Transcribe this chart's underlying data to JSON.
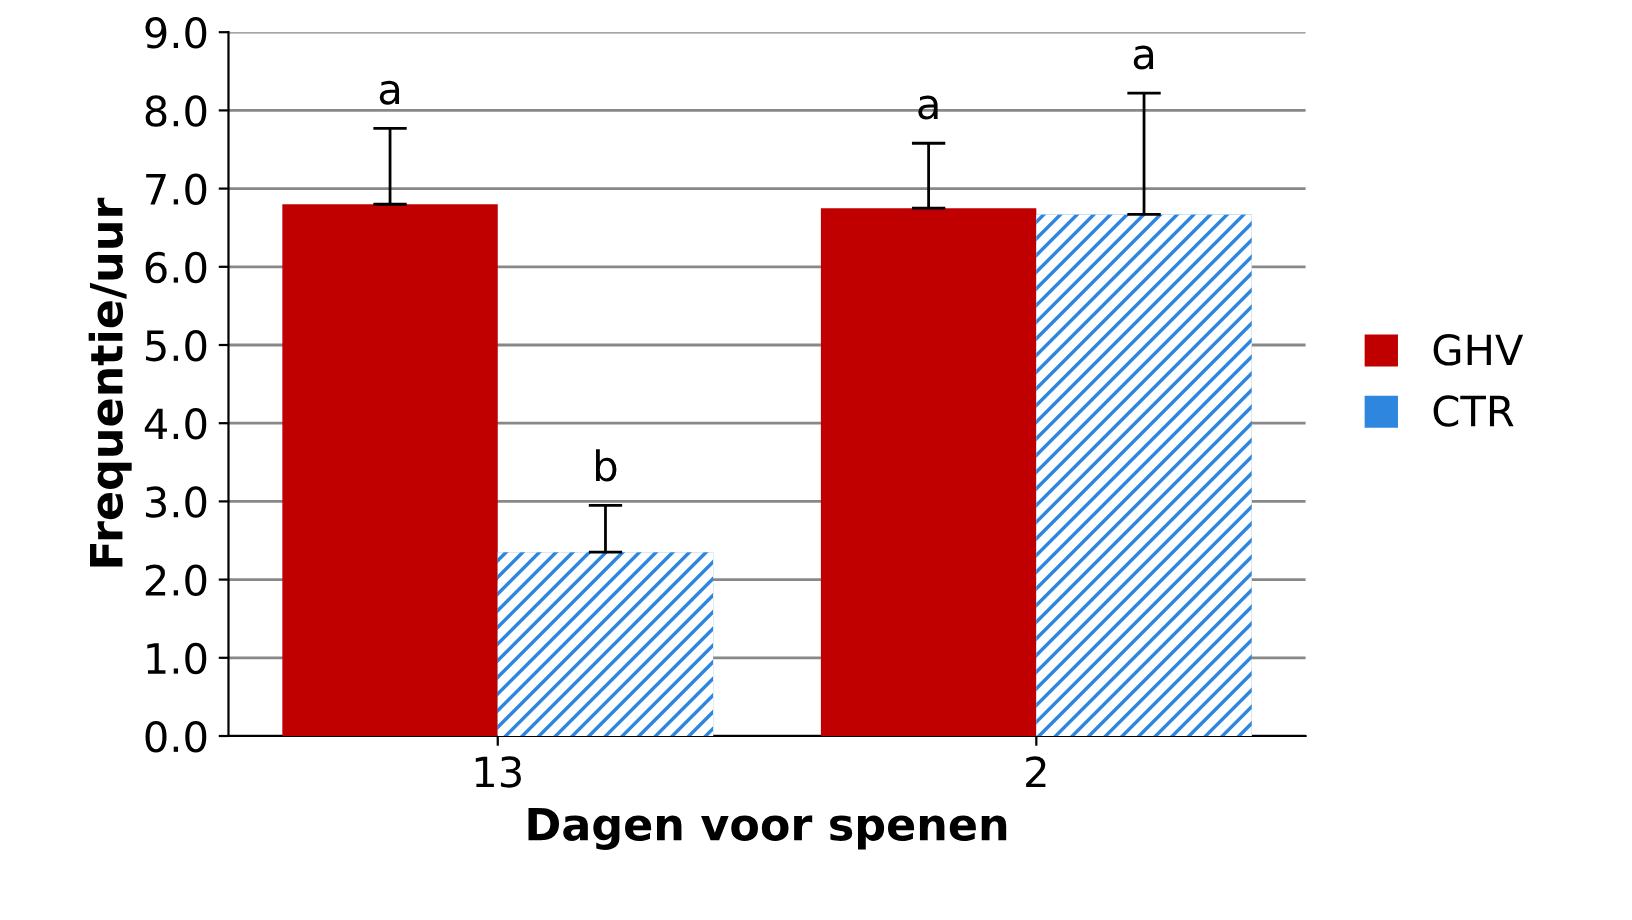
{
  "chart_data": {
    "type": "bar",
    "xlabel": "Dagen voor spenen",
    "ylabel": "Frequentie/uur",
    "categories": [
      "13",
      "2"
    ],
    "series": [
      {
        "name": "GHV",
        "color": "#c00000",
        "values": [
          6.8,
          6.75
        ],
        "errors": [
          [
            6.8,
            7.77
          ],
          [
            6.75,
            7.58
          ]
        ]
      },
      {
        "name": "CTR",
        "color": "#2e86de",
        "values": [
          2.35,
          6.67
        ],
        "errors": [
          [
            2.35,
            2.95
          ],
          [
            6.67,
            8.22
          ]
        ]
      }
    ],
    "ylim": [
      0,
      9
    ],
    "yticks": [
      {
        "value": 0,
        "label": "0.0"
      },
      {
        "value": 1,
        "label": "1.0"
      },
      {
        "value": 2,
        "label": "2.0"
      },
      {
        "value": 3,
        "label": "3.0"
      },
      {
        "value": 4,
        "label": "4.0"
      },
      {
        "value": 5,
        "label": "5.0"
      },
      {
        "value": 6,
        "label": "6.0"
      },
      {
        "value": 7,
        "label": "7.0"
      },
      {
        "value": 8,
        "label": "8.0"
      },
      {
        "value": 9,
        "label": "9.0"
      }
    ],
    "grid": "y",
    "legend": "right",
    "annotations": [
      "a",
      "b",
      "a",
      "a"
    ]
  }
}
